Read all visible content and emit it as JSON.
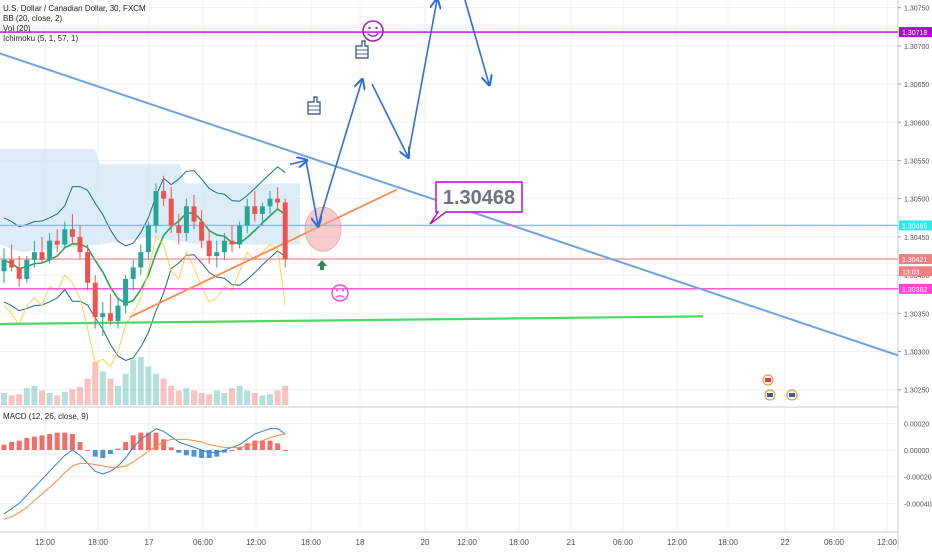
{
  "legend": {
    "symbol": "U.S. Dollar / Canadian Dollar, 30, FXCM",
    "bb": "BB (20, close, 2)",
    "vol": "Vol (20)",
    "ichimoku": "Ichimoku (5, 1, 57, 1)",
    "macd": "MACD (12, 26, close, 9)"
  },
  "callout": {
    "text": "1.30468"
  },
  "colors": {
    "up": "#26a69a",
    "down": "#ef5350",
    "trend": "#6fa3e0",
    "support": "#ff8a50",
    "green_line": "#4cd964",
    "level_purple": "#b400d8",
    "level_cyan": "#34e6e6",
    "level_magenta": "#ff44d2",
    "level_red": "#f08080",
    "arrow": "#2e6fd6",
    "bb": "#1f6b82",
    "ichimoku_cloud": "#cfe6f5",
    "baseline": "#2aa556",
    "lagging": "#ffd34d",
    "macd": "#2e7fd6",
    "signal": "#ff8a3d"
  },
  "chart_data": [
    {
      "type": "candlestick",
      "title": "U.S. Dollar / Canadian Dollar, 30, FXCM",
      "ylim": [
        1.3023,
        1.3076
      ],
      "y_ticks": [
        "1.30750",
        "1.30700",
        "1.30650",
        "1.30600",
        "1.30550",
        "1.30500",
        "1.30450",
        "1.30400",
        "1.30350",
        "1.30300",
        "1.30250"
      ],
      "x_ticks": [
        "12:00",
        "18:00",
        "17",
        "06:00",
        "12:00",
        "18:00",
        "18",
        "20",
        "12:00",
        "18:00",
        "21",
        "06:00",
        "12:00",
        "18:00",
        "22",
        "06:00",
        "12:00"
      ],
      "price_labels": [
        {
          "text": "1.30718",
          "value": 1.30718,
          "color": "#b400d8"
        },
        {
          "text": "1.30465",
          "value": 1.30465,
          "color": "#34e6e6"
        },
        {
          "text": "1.30421",
          "value": 1.30421,
          "color": "#f08080"
        },
        {
          "text": "13:03",
          "value": 1.30405,
          "color": "#f08080"
        },
        {
          "text": "1.30382",
          "value": 1.30382,
          "color": "#ff44d2"
        }
      ],
      "horizontal_levels": [
        {
          "value": 1.30718,
          "color": "#b400d8"
        },
        {
          "value": 1.30465,
          "color": "#34e6e6"
        },
        {
          "value": 1.30421,
          "color": "#f08080"
        },
        {
          "value": 1.30382,
          "color": "#ff44d2"
        }
      ],
      "candles": [
        [
          1.30405,
          1.30435,
          1.3039,
          1.3042
        ],
        [
          1.3042,
          1.3044,
          1.30405,
          1.3041
        ],
        [
          1.3041,
          1.30425,
          1.30385,
          1.30395
        ],
        [
          1.30395,
          1.30425,
          1.3039,
          1.3042
        ],
        [
          1.3042,
          1.30445,
          1.3041,
          1.3043
        ],
        [
          1.3043,
          1.3045,
          1.30415,
          1.3042
        ],
        [
          1.3042,
          1.30455,
          1.30415,
          1.30445
        ],
        [
          1.30445,
          1.3046,
          1.3043,
          1.3044
        ],
        [
          1.3044,
          1.3047,
          1.30435,
          1.3046
        ],
        [
          1.3046,
          1.3048,
          1.3044,
          1.3045
        ],
        [
          1.3045,
          1.30465,
          1.3042,
          1.3043
        ],
        [
          1.3043,
          1.3044,
          1.3038,
          1.3039
        ],
        [
          1.3039,
          1.304,
          1.3033,
          1.30345
        ],
        [
          1.30345,
          1.30365,
          1.3032,
          1.3035
        ],
        [
          1.3035,
          1.30375,
          1.30335,
          1.3034
        ],
        [
          1.3034,
          1.3037,
          1.3033,
          1.3036
        ],
        [
          1.3036,
          1.304,
          1.3035,
          1.30395
        ],
        [
          1.30395,
          1.3042,
          1.3038,
          1.3041
        ],
        [
          1.3041,
          1.3044,
          1.304,
          1.3043
        ],
        [
          1.3043,
          1.3047,
          1.3042,
          1.30465
        ],
        [
          1.30465,
          1.3052,
          1.30455,
          1.3051
        ],
        [
          1.3051,
          1.3053,
          1.3049,
          1.305
        ],
        [
          1.305,
          1.30515,
          1.30455,
          1.30465
        ],
        [
          1.30465,
          1.3048,
          1.3044,
          1.30455
        ],
        [
          1.30455,
          1.305,
          1.30445,
          1.3049
        ],
        [
          1.3049,
          1.30505,
          1.3046,
          1.3047
        ],
        [
          1.3047,
          1.30485,
          1.30435,
          1.30445
        ],
        [
          1.30445,
          1.3046,
          1.30415,
          1.30425
        ],
        [
          1.30425,
          1.30445,
          1.3041,
          1.3043
        ],
        [
          1.3043,
          1.30455,
          1.3042,
          1.30445
        ],
        [
          1.30445,
          1.30465,
          1.3043,
          1.3044
        ],
        [
          1.3044,
          1.3047,
          1.30435,
          1.30465
        ],
        [
          1.30465,
          1.305,
          1.30455,
          1.3049
        ],
        [
          1.3049,
          1.3051,
          1.3047,
          1.3048
        ],
        [
          1.3048,
          1.30495,
          1.30465,
          1.3049
        ],
        [
          1.3049,
          1.3051,
          1.3048,
          1.305
        ],
        [
          1.305,
          1.30515,
          1.30485,
          1.30495
        ],
        [
          1.30495,
          1.305,
          1.3041,
          1.30421
        ]
      ],
      "volume": [
        1.0,
        0.8,
        0.9,
        1.4,
        1.6,
        1.2,
        1.0,
        0.8,
        1.1,
        1.3,
        1.5,
        2.2,
        3.6,
        2.8,
        2.2,
        1.6,
        2.6,
        3.8,
        4.0,
        3.2,
        2.6,
        2.2,
        1.6,
        1.2,
        1.4,
        1.2,
        1.0,
        0.9,
        1.2,
        1.0,
        1.4,
        1.6,
        1.2,
        1.0,
        0.8,
        0.9,
        1.2,
        1.6
      ]
    },
    {
      "type": "line",
      "title": "MACD (12, 26, close, 9)",
      "ylim": [
        -0.0006,
        0.0003
      ],
      "y_ticks": [
        "0.00020",
        "0.00000",
        "-0.00020",
        "-0.00040"
      ],
      "series": [
        {
          "values": [
            -0.00048,
            -0.00044,
            -0.0004,
            -0.00034,
            -0.00028,
            -0.00022,
            -0.00016,
            -0.0001,
            -4e-05,
            0.0,
            -4e-05,
            -0.0001,
            -0.00016,
            -0.00018,
            -0.00016,
            -0.00012,
            -6e-05,
            2e-05,
            8e-05,
            0.00012,
            0.00016,
            0.00014,
            0.0001,
            6e-05,
            4e-05,
            2e-05,
            0.0,
            -2e-05,
            -2e-05,
            0.0,
            2e-05,
            4e-05,
            8e-05,
            0.00012,
            0.00014,
            0.00016,
            0.00016,
            0.00012
          ]
        },
        {
          "values": [
            -0.00052,
            -0.0005,
            -0.00047,
            -0.00043,
            -0.00038,
            -0.00033,
            -0.00028,
            -0.00023,
            -0.00017,
            -0.00012,
            -0.0001,
            -0.0001,
            -0.00011,
            -0.00012,
            -0.00013,
            -0.00013,
            -0.00012,
            -9e-05,
            -5e-05,
            -1e-05,
            3e-05,
            6e-05,
            8e-05,
            8e-05,
            8e-05,
            7e-05,
            6e-05,
            4e-05,
            3e-05,
            2e-05,
            2e-05,
            2e-05,
            3e-05,
            5e-05,
            7e-05,
            9e-05,
            0.00011,
            0.00012
          ]
        },
        {
          "values": [
            4e-05,
            6e-05,
            7e-05,
            9e-05,
            0.0001,
            0.00011,
            0.00012,
            0.00013,
            0.00013,
            0.00012,
            6e-05,
            0.0,
            -5e-05,
            -6e-05,
            -3e-05,
            1e-05,
            6e-05,
            0.00011,
            0.00013,
            0.00013,
            0.00013,
            8e-05,
            2e-05,
            -2e-05,
            -4e-05,
            -5e-05,
            -6e-05,
            -6e-05,
            -5e-05,
            -2e-05,
            0.0,
            2e-05,
            5e-05,
            7e-05,
            7e-05,
            7e-05,
            5e-05,
            0.0
          ]
        }
      ]
    }
  ]
}
